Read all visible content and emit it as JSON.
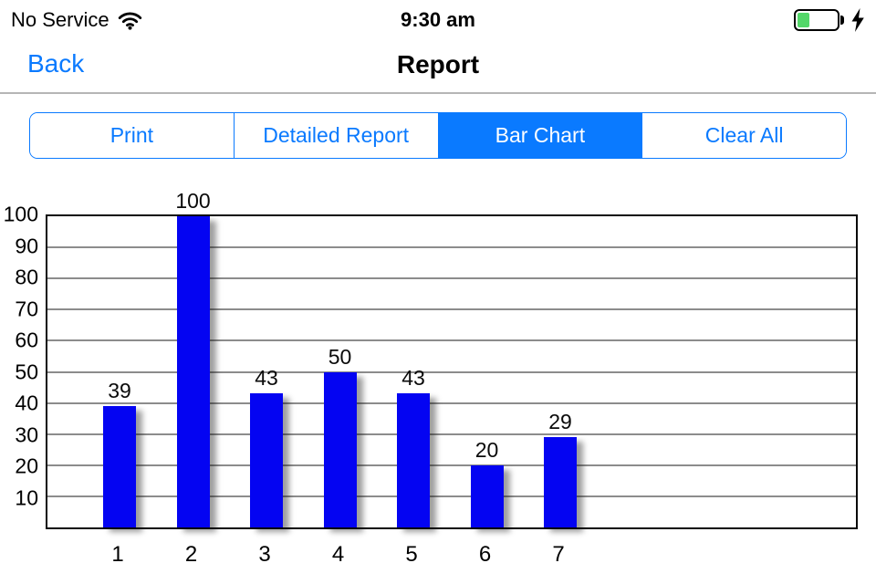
{
  "status_bar": {
    "carrier": "No Service",
    "time": "9:30 am",
    "icons": {
      "wifi": "wifi-icon",
      "battery": "battery-charging-icon",
      "bolt": "charging-bolt-icon"
    },
    "battery_level_percent": 32
  },
  "nav_bar": {
    "back_label": "Back",
    "title": "Report"
  },
  "segmented_control": {
    "selected_index": 2,
    "items": [
      {
        "label": "Print"
      },
      {
        "label": "Detailed Report"
      },
      {
        "label": "Bar Chart"
      },
      {
        "label": "Clear All"
      }
    ]
  },
  "colors": {
    "accent_blue": "#0a7aff",
    "bar_blue": "#0404f2",
    "grid_gray": "#8c8c8c",
    "battery_green": "#53d769"
  },
  "chart_data": {
    "type": "bar",
    "categories": [
      "1",
      "2",
      "3",
      "4",
      "5",
      "6",
      "7"
    ],
    "values": [
      39,
      100,
      43,
      50,
      43,
      20,
      29
    ],
    "title": "",
    "xlabel": "",
    "ylabel": "",
    "ylim": [
      0,
      100
    ],
    "ytick_step": 10,
    "grid": true,
    "legend": false,
    "value_labels": true,
    "bar_color": "#0404f2"
  }
}
